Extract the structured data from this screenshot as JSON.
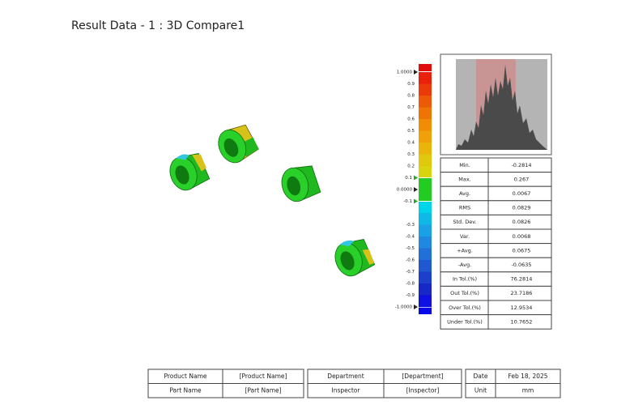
{
  "header": {
    "title": "Result Data - 1 :  3D Compare1"
  },
  "color_scale": {
    "labels": [
      "1.0000",
      "0.9",
      "0.8",
      "0.7",
      "0.6",
      "0.5",
      "0.4",
      "0.3",
      "0.2",
      "0.1",
      "0.0000",
      "-0.1",
      null,
      "-0.3",
      "-0.4",
      "-0.5",
      "-0.6",
      "-0.7",
      "-0.8",
      "-0.9",
      "-1.0000"
    ]
  },
  "stats_table": {
    "rows": [
      [
        "Min.",
        "-0.2814"
      ],
      [
        "Max.",
        "0.267"
      ],
      [
        "Avg.",
        "0.0067"
      ],
      [
        "RMS",
        "0.0829"
      ],
      [
        "Std. Dev.",
        "0.0826"
      ],
      [
        "Var.",
        "0.0068"
      ],
      [
        "+Avg.",
        "0.0675"
      ],
      [
        "-Avg.",
        "-0.0635"
      ],
      [
        "In Tol.(%)",
        "76.2814"
      ],
      [
        "Out Tol.(%)",
        "23.7186"
      ],
      [
        "Over Tol.(%)",
        "12.9534"
      ],
      [
        "Under Tol.(%)",
        "10.7652"
      ]
    ]
  },
  "footer_table": {
    "rows": [
      [
        "Product Name",
        "[Product Name]",
        "Department",
        "[Department]",
        "Date",
        "Feb 18, 2025"
      ],
      [
        "Part Name",
        "[Part Name]",
        "Inspector",
        "[Inspector]",
        "Unit",
        "mm"
      ]
    ]
  }
}
